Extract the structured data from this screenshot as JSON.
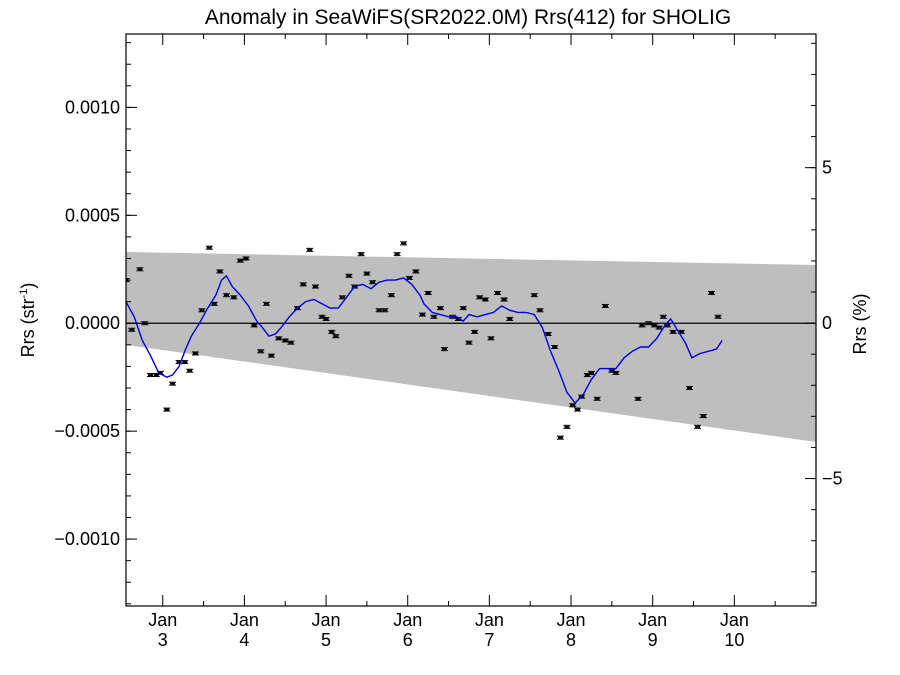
{
  "chart_data": {
    "type": "line",
    "title": "Anomaly in SeaWiFS(SR2022.0M) Rrs(412) for SHOLIG",
    "ylabel_left": "Rrs (str",
    "ylabel_left_superscript": "-1",
    "ylabel_left_close": ")",
    "ylabel_right": "Rrs (%)",
    "x_range_days": [
      2.55,
      11.0
    ],
    "ylim_left": [
      -0.00131,
      0.00134
    ],
    "ylim_right": [
      -9.1,
      9.3
    ],
    "xticks": [
      {
        "x": 3.0,
        "month": "Jan",
        "day": "3"
      },
      {
        "x": 4.0,
        "month": "Jan",
        "day": "4"
      },
      {
        "x": 5.0,
        "month": "Jan",
        "day": "5"
      },
      {
        "x": 6.0,
        "month": "Jan",
        "day": "6"
      },
      {
        "x": 7.0,
        "month": "Jan",
        "day": "7"
      },
      {
        "x": 8.0,
        "month": "Jan",
        "day": "8"
      },
      {
        "x": 9.0,
        "month": "Jan",
        "day": "9"
      },
      {
        "x": 10.0,
        "month": "Jan",
        "day": "10"
      }
    ],
    "yticks_left": [
      {
        "value": 0.001,
        "label": "0.0010"
      },
      {
        "value": 0.0005,
        "label": "0.0005"
      },
      {
        "value": 0.0,
        "label": "0.0000"
      },
      {
        "value": -0.0005,
        "label": "−0.0005"
      },
      {
        "value": -0.001,
        "label": "−0.0010"
      }
    ],
    "yticks_right": [
      {
        "value": 5,
        "label": "5"
      },
      {
        "value": 0,
        "label": "0"
      },
      {
        "value": -5,
        "label": "−5"
      }
    ],
    "band": {
      "upper": [
        [
          2.55,
          0.00033
        ],
        [
          11.0,
          0.00027
        ]
      ],
      "lower": [
        [
          2.55,
          -0.0001
        ],
        [
          11.0,
          -0.00055
        ]
      ]
    },
    "zero_line": 0.0,
    "series": [
      {
        "style": "points",
        "color": "#000000",
        "points": [
          [
            2.55,
            0.0002
          ],
          [
            2.62,
            -3e-05
          ],
          [
            2.72,
            0.00025
          ],
          [
            2.78,
            0
          ],
          [
            2.85,
            -0.00024
          ],
          [
            2.92,
            -0.00024
          ],
          [
            2.97,
            -0.00023
          ],
          [
            3.05,
            -0.0004
          ],
          [
            3.12,
            -0.00028
          ],
          [
            3.2,
            -0.00018
          ],
          [
            3.27,
            -0.00018
          ],
          [
            3.33,
            -0.00022
          ],
          [
            3.4,
            -0.00014
          ],
          [
            3.48,
            6e-05
          ],
          [
            3.57,
            0.00035
          ],
          [
            3.63,
            9e-05
          ],
          [
            3.7,
            0.00024
          ],
          [
            3.78,
            0.00013
          ],
          [
            3.87,
            0.00012
          ],
          [
            3.95,
            0.00029
          ],
          [
            4.02,
            0.0003
          ],
          [
            4.12,
            -1e-05
          ],
          [
            4.2,
            -0.00013
          ],
          [
            4.27,
            9e-05
          ],
          [
            4.33,
            -0.00015
          ],
          [
            4.42,
            -7e-05
          ],
          [
            4.5,
            -8e-05
          ],
          [
            4.57,
            -9e-05
          ],
          [
            4.65,
            7e-05
          ],
          [
            4.72,
            0.00018
          ],
          [
            4.8,
            0.00034
          ],
          [
            4.87,
            0.00017
          ],
          [
            4.95,
            3e-05
          ],
          [
            5.0,
            2e-05
          ],
          [
            5.07,
            -4e-05
          ],
          [
            5.12,
            -6e-05
          ],
          [
            5.2,
            0.00012
          ],
          [
            5.28,
            0.00022
          ],
          [
            5.35,
            0.00017
          ],
          [
            5.43,
            0.00032
          ],
          [
            5.5,
            0.00023
          ],
          [
            5.57,
            0.00019
          ],
          [
            5.65,
            6e-05
          ],
          [
            5.72,
            6e-05
          ],
          [
            5.8,
            0.00013
          ],
          [
            5.87,
            0.00032
          ],
          [
            5.95,
            0.00037
          ],
          [
            6.02,
            0.00021
          ],
          [
            6.1,
            0.00024
          ],
          [
            6.18,
            4e-05
          ],
          [
            6.25,
            0.00014
          ],
          [
            6.32,
            3e-05
          ],
          [
            6.4,
            7e-05
          ],
          [
            6.45,
            -0.00012
          ],
          [
            6.55,
            3e-05
          ],
          [
            6.62,
            2e-05
          ],
          [
            6.68,
            7e-05
          ],
          [
            6.75,
            -9e-05
          ],
          [
            6.82,
            -4e-05
          ],
          [
            6.88,
            0.00012
          ],
          [
            6.95,
            0.00011
          ],
          [
            7.02,
            -7e-05
          ],
          [
            7.1,
            0.00014
          ],
          [
            7.18,
            0.00011
          ],
          [
            7.25,
            2e-05
          ],
          [
            7.55,
            0.00013
          ],
          [
            7.62,
            6e-05
          ],
          [
            7.72,
            -5e-05
          ],
          [
            7.8,
            -0.00011
          ],
          [
            7.87,
            -0.00053
          ],
          [
            7.95,
            -0.00048
          ],
          [
            8.02,
            -0.00038
          ],
          [
            8.08,
            -0.0004
          ],
          [
            8.13,
            -0.00034
          ],
          [
            8.2,
            -0.00024
          ],
          [
            8.25,
            -0.00023
          ],
          [
            8.32,
            -0.00035
          ],
          [
            8.42,
            8e-05
          ],
          [
            8.5,
            -0.00022
          ],
          [
            8.55,
            -0.00023
          ],
          [
            8.82,
            -0.00035
          ],
          [
            8.87,
            -1e-05
          ],
          [
            8.95,
            0.0
          ],
          [
            9.02,
            -1e-05
          ],
          [
            9.08,
            -2e-05
          ],
          [
            9.13,
            3e-05
          ],
          [
            9.18,
            -1e-05
          ],
          [
            9.25,
            -4e-05
          ],
          [
            9.35,
            -4e-05
          ],
          [
            9.45,
            -0.0003
          ],
          [
            9.55,
            -0.00048
          ],
          [
            9.62,
            -0.00043
          ],
          [
            9.72,
            0.00014
          ],
          [
            9.8,
            3e-05
          ]
        ]
      },
      {
        "style": "line",
        "color": "#0000dd",
        "points": [
          [
            2.55,
            0.0001
          ],
          [
            2.65,
            3e-05
          ],
          [
            2.75,
            -8e-05
          ],
          [
            2.85,
            -0.00015
          ],
          [
            2.95,
            -0.00023
          ],
          [
            3.05,
            -0.00025
          ],
          [
            3.12,
            -0.00024
          ],
          [
            3.2,
            -0.0002
          ],
          [
            3.28,
            -0.00012
          ],
          [
            3.35,
            -6e-05
          ],
          [
            3.45,
            0.0
          ],
          [
            3.55,
            7e-05
          ],
          [
            3.65,
            0.00013
          ],
          [
            3.72,
            0.0002
          ],
          [
            3.78,
            0.00022
          ],
          [
            3.85,
            0.00017
          ],
          [
            3.95,
            0.00013
          ],
          [
            4.05,
            8e-05
          ],
          [
            4.15,
            1e-05
          ],
          [
            4.22,
            -2e-05
          ],
          [
            4.3,
            -6e-05
          ],
          [
            4.38,
            -5e-05
          ],
          [
            4.45,
            -2e-05
          ],
          [
            4.55,
            3e-05
          ],
          [
            4.65,
            7e-05
          ],
          [
            4.75,
            0.0001
          ],
          [
            4.85,
            0.00011
          ],
          [
            4.95,
            9e-05
          ],
          [
            5.05,
            7e-05
          ],
          [
            5.15,
            7e-05
          ],
          [
            5.25,
            0.00012
          ],
          [
            5.35,
            0.00017
          ],
          [
            5.45,
            0.00018
          ],
          [
            5.55,
            0.00016
          ],
          [
            5.65,
            0.00019
          ],
          [
            5.75,
            0.0002
          ],
          [
            5.85,
            0.0002
          ],
          [
            5.95,
            0.00021
          ],
          [
            6.05,
            0.00018
          ],
          [
            6.15,
            0.00013
          ],
          [
            6.2,
            9e-05
          ],
          [
            6.3,
            5e-05
          ],
          [
            6.4,
            4e-05
          ],
          [
            6.5,
            3e-05
          ],
          [
            6.6,
            3e-05
          ],
          [
            6.68,
            1e-05
          ],
          [
            6.75,
            4e-05
          ],
          [
            6.85,
            3e-05
          ],
          [
            6.95,
            4e-05
          ],
          [
            7.05,
            5e-05
          ],
          [
            7.15,
            8e-05
          ],
          [
            7.25,
            6e-05
          ],
          [
            7.35,
            5e-05
          ],
          [
            7.45,
            5e-05
          ],
          [
            7.55,
            4e-05
          ],
          [
            7.65,
            -2e-05
          ],
          [
            7.75,
            -0.00013
          ],
          [
            7.85,
            -0.00022
          ],
          [
            7.95,
            -0.00032
          ],
          [
            8.05,
            -0.00037
          ],
          [
            8.15,
            -0.00033
          ],
          [
            8.25,
            -0.00026
          ],
          [
            8.35,
            -0.00021
          ],
          [
            8.45,
            -0.00021
          ],
          [
            8.55,
            -0.00021
          ],
          [
            8.65,
            -0.00016
          ],
          [
            8.75,
            -0.00013
          ],
          [
            8.85,
            -0.00011
          ],
          [
            8.95,
            -0.00011
          ],
          [
            9.05,
            -7e-05
          ],
          [
            9.15,
            -1e-05
          ],
          [
            9.22,
            2e-05
          ],
          [
            9.3,
            -3e-05
          ],
          [
            9.4,
            -9e-05
          ],
          [
            9.48,
            -0.00016
          ],
          [
            9.58,
            -0.00014
          ],
          [
            9.68,
            -0.00013
          ],
          [
            9.78,
            -0.00012
          ],
          [
            9.85,
            -8e-05
          ]
        ]
      }
    ]
  }
}
